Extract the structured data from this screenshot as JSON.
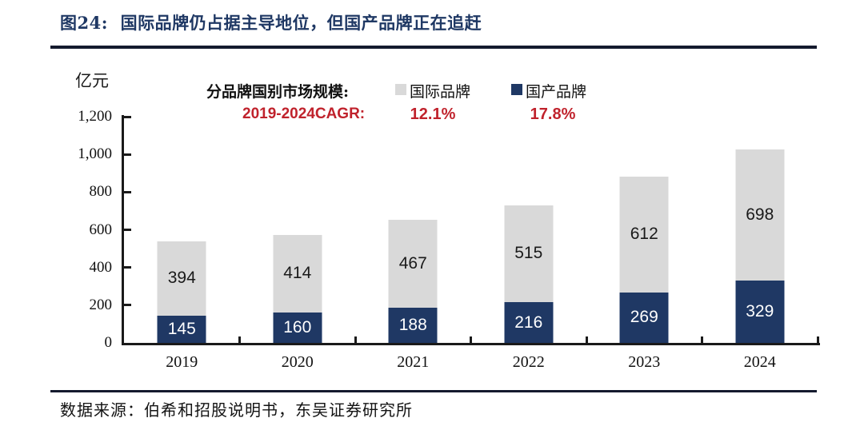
{
  "figure": {
    "title": "图24:  国际品牌仍占据主导地位，但国产品牌正在追赶"
  },
  "unit_label": "亿元",
  "legend": {
    "series_title": "分品牌国别市场规模:",
    "items": [
      {
        "label": "国际品牌",
        "color": "#d9d9d9"
      },
      {
        "label": "国产品牌",
        "color": "#1f3864"
      }
    ],
    "cagr_title": "2019-2024CAGR:",
    "cagr_values": [
      "12.1%",
      "17.8%"
    ]
  },
  "source": "数据来源：伯希和招股说明书，东吴证券研究所",
  "colors": {
    "title_text": "#1f3864",
    "rule": "#141a2e",
    "cagr_red": "#c0222c",
    "axis": "#1a1a1a",
    "international_bar": "#d9d9d9",
    "domestic_bar": "#1f3864"
  },
  "chart_data": {
    "type": "bar",
    "stacked": true,
    "title": "分品牌国别市场规模",
    "ylabel": "亿元",
    "categories": [
      "2019",
      "2020",
      "2021",
      "2022",
      "2023",
      "2024"
    ],
    "series": [
      {
        "name": "国产品牌",
        "color": "#1f3864",
        "label_color": "#ffffff",
        "values": [
          145,
          160,
          188,
          216,
          269,
          329
        ],
        "cagr_2019_2024": "17.8%"
      },
      {
        "name": "国际品牌",
        "color": "#d9d9d9",
        "label_color": "#1a1a1a",
        "values": [
          394,
          414,
          467,
          515,
          612,
          698
        ],
        "cagr_2019_2024": "12.1%"
      }
    ],
    "ylim": [
      0,
      1200
    ],
    "yticks": [
      {
        "value": 0,
        "label": "0"
      },
      {
        "value": 200,
        "label": "200"
      },
      {
        "value": 400,
        "label": "400"
      },
      {
        "value": 600,
        "label": "600"
      },
      {
        "value": 800,
        "label": "800"
      },
      {
        "value": 1000,
        "label": "1,000"
      },
      {
        "value": 1200,
        "label": "1,200"
      }
    ],
    "grid": false,
    "legend_position": "top"
  }
}
